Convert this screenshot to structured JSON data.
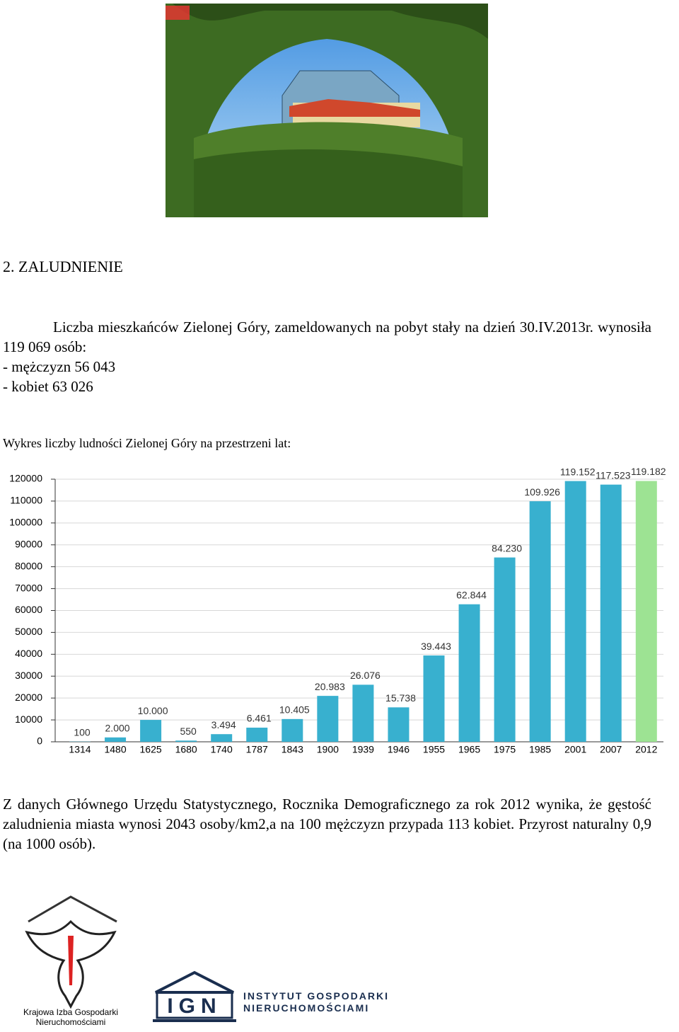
{
  "header": {
    "section_title": "2. ZALUDNIENIE"
  },
  "intro": {
    "paragraph": "Liczba mieszkańców Zielonej Góry, zameldowanych na pobyt stały na dzień 30.IV.2013r. wynosiła 119 069 osób:",
    "items": [
      "- mężczyzn 56 043",
      "- kobiet 63 026"
    ]
  },
  "chart_caption": "Wykres liczby ludności Zielonej Góry na przestrzeni lat:",
  "chart_data": {
    "type": "bar",
    "categories": [
      "1314",
      "1480",
      "1625",
      "1680",
      "1740",
      "1787",
      "1843",
      "1900",
      "1939",
      "1946",
      "1955",
      "1965",
      "1975",
      "1985",
      "2001",
      "2007",
      "2012"
    ],
    "values": [
      100,
      2000,
      10000,
      550,
      3494,
      6461,
      10405,
      20983,
      26076,
      15738,
      39443,
      62844,
      84230,
      109926,
      119152,
      117523,
      119182
    ],
    "value_labels": [
      "100",
      "2.000",
      "10.000",
      "550",
      "3.494",
      "6.461",
      "10.405",
      "20.983",
      "26.076",
      "15.738",
      "39.443",
      "62.844",
      "84.230",
      "109.926",
      "119.152",
      "117.523",
      "119.182"
    ],
    "colors": [
      "#38b0cf",
      "#38b0cf",
      "#38b0cf",
      "#38b0cf",
      "#38b0cf",
      "#38b0cf",
      "#38b0cf",
      "#38b0cf",
      "#38b0cf",
      "#38b0cf",
      "#38b0cf",
      "#38b0cf",
      "#38b0cf",
      "#38b0cf",
      "#38b0cf",
      "#38b0cf",
      "#9de393"
    ],
    "ylim": [
      0,
      120000
    ],
    "yticks": [
      0,
      10000,
      20000,
      30000,
      40000,
      50000,
      60000,
      70000,
      80000,
      90000,
      100000,
      110000,
      120000
    ],
    "grid": true
  },
  "footer_paragraph": "Z danych Głównego Urzędu Statystycznego, Rocznika Demograficznego za rok 2012 wynika, że gęstość zaludnienia miasta wynosi 2043 osoby/km2,a na 100 mężczyzn przypada 113 kobiet. Przyrost naturalny 0,9 (na 1000 osób).",
  "logos": {
    "kign": [
      "Krajowa Izba Gospodarki",
      "Nieruchomościami"
    ],
    "ign_mark": "IGN",
    "ign_name": [
      "INSTYTUT GOSPODARKI",
      "NIERUCHOMOŚCIAMI"
    ]
  }
}
